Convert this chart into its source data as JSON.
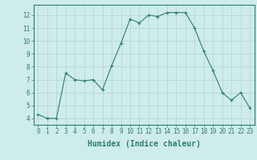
{
  "x": [
    0,
    1,
    2,
    3,
    4,
    5,
    6,
    7,
    8,
    9,
    10,
    11,
    12,
    13,
    14,
    15,
    16,
    17,
    18,
    19,
    20,
    21,
    22,
    23
  ],
  "y": [
    4.3,
    4.0,
    4.0,
    7.5,
    7.0,
    6.9,
    7.0,
    6.2,
    8.1,
    9.8,
    11.7,
    11.4,
    12.0,
    11.9,
    12.2,
    12.2,
    12.2,
    11.0,
    9.2,
    7.7,
    6.0,
    5.4,
    6.0,
    4.8
  ],
  "line_color": "#2e7d6e",
  "marker": "+",
  "marker_size": 3,
  "xlabel": "Humidex (Indice chaleur)",
  "xlim": [
    -0.5,
    23.5
  ],
  "ylim": [
    3.5,
    12.8
  ],
  "yticks": [
    4,
    5,
    6,
    7,
    8,
    9,
    10,
    11,
    12
  ],
  "xticks": [
    0,
    1,
    2,
    3,
    4,
    5,
    6,
    7,
    8,
    9,
    10,
    11,
    12,
    13,
    14,
    15,
    16,
    17,
    18,
    19,
    20,
    21,
    22,
    23
  ],
  "xtick_labels": [
    "0",
    "1",
    "2",
    "3",
    "4",
    "5",
    "6",
    "7",
    "8",
    "9",
    "10",
    "11",
    "12",
    "13",
    "14",
    "15",
    "16",
    "17",
    "18",
    "19",
    "20",
    "21",
    "22",
    "23"
  ],
  "background_color": "#ceecea",
  "grid_color": "#b0d4d0",
  "tick_fontsize": 5.5,
  "xlabel_fontsize": 7
}
